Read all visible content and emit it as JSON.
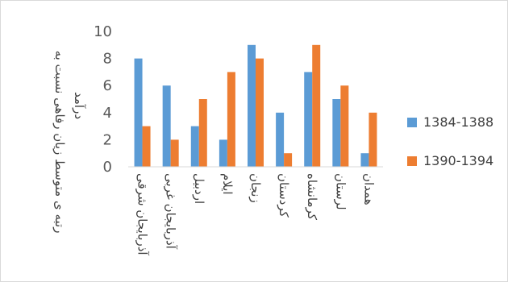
{
  "chart_data": {
    "type": "bar",
    "categories": [
      "آذربایجان شرقی",
      "آذربایجان غربی",
      "اردبیل",
      "ایلام",
      "زنجان",
      "کردستان",
      "کرمانشاه",
      "لرستان",
      "همدان"
    ],
    "series": [
      {
        "name": "1384-1388",
        "values": [
          8,
          6,
          3,
          2,
          9,
          4,
          7,
          5,
          1
        ],
        "color": "#5B9BD5"
      },
      {
        "name": "1390-1394",
        "values": [
          3,
          2,
          5,
          7,
          8,
          1,
          9,
          6,
          4
        ],
        "color": "#ED7D31"
      }
    ],
    "ylabel": "رتبه ی متوسط زیان رفاهی نسبت به درآمد",
    "ylim": [
      0,
      10
    ],
    "yticks": [
      0,
      2,
      4,
      6,
      8,
      10
    ],
    "grid": false,
    "legend_position": "right"
  }
}
